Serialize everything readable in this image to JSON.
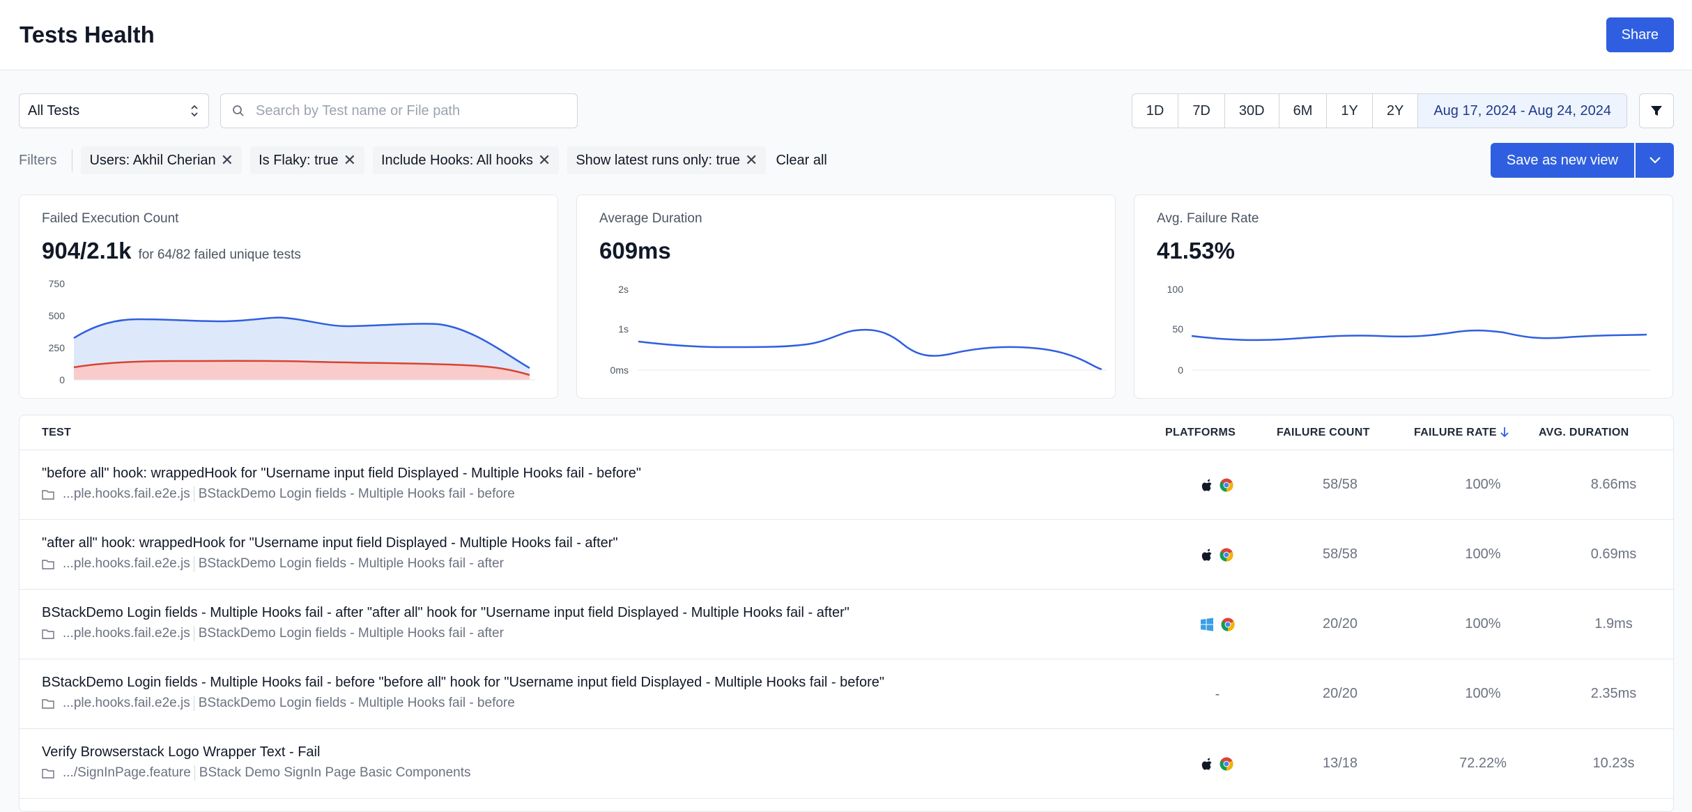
{
  "header": {
    "title": "Tests Health",
    "share_label": "Share"
  },
  "toolbar": {
    "select_value": "All Tests",
    "search_placeholder": "Search by Test name or File path",
    "ranges": [
      "1D",
      "7D",
      "30D",
      "6M",
      "1Y",
      "2Y"
    ],
    "date_range": "Aug 17, 2024 - Aug 24, 2024"
  },
  "filters": {
    "label": "Filters",
    "chips": [
      "Users: Akhil Cherian",
      "Is Flaky: true",
      "Include Hooks: All hooks",
      "Show latest runs only: true"
    ],
    "clear_all": "Clear all",
    "save_view": "Save as new view"
  },
  "cards": {
    "failed": {
      "title": "Failed Execution Count",
      "value": "904/2.1k",
      "sub": "for 64/82 failed unique tests",
      "y_ticks": [
        "750",
        "500",
        "250",
        "0"
      ]
    },
    "duration": {
      "title": "Average Duration",
      "value": "609ms",
      "y_ticks": [
        "2s",
        "1s",
        "0ms"
      ]
    },
    "failure_rate": {
      "title": "Avg. Failure Rate",
      "value": "41.53%",
      "y_ticks": [
        "100",
        "50",
        "0"
      ]
    }
  },
  "table": {
    "headers": {
      "test": "TEST",
      "platforms": "PLATFORMS",
      "failure_count": "FAILURE COUNT",
      "failure_rate": "FAILURE RATE",
      "avg_duration": "AVG. DURATION"
    },
    "rows": [
      {
        "name": "\"before all\" hook: wrappedHook for \"Username input field Displayed - Multiple Hooks fail - before\"",
        "file": "...ple.hooks.fail.e2e.js",
        "suite": "BStackDemo Login fields - Multiple Hooks fail - before",
        "platforms": [
          "apple-icon",
          "chrome-icon"
        ],
        "count": "58/58",
        "rate": "100%",
        "duration": "8.66ms"
      },
      {
        "name": "\"after all\" hook: wrappedHook for \"Username input field Displayed - Multiple Hooks fail - after\"",
        "file": "...ple.hooks.fail.e2e.js",
        "suite": "BStackDemo Login fields - Multiple Hooks fail - after",
        "platforms": [
          "apple-icon",
          "chrome-icon"
        ],
        "count": "58/58",
        "rate": "100%",
        "duration": "0.69ms"
      },
      {
        "name": "BStackDemo Login fields - Multiple Hooks fail - after \"after all\" hook for \"Username input field Displayed - Multiple Hooks fail - after\"",
        "file": "...ple.hooks.fail.e2e.js",
        "suite": "BStackDemo Login fields - Multiple Hooks fail - after",
        "platforms": [
          "windows-icon",
          "chrome-icon"
        ],
        "count": "20/20",
        "rate": "100%",
        "duration": "1.9ms"
      },
      {
        "name": "BStackDemo Login fields - Multiple Hooks fail - before \"before all\" hook for \"Username input field Displayed - Multiple Hooks fail - before\"",
        "file": "...ple.hooks.fail.e2e.js",
        "suite": "BStackDemo Login fields - Multiple Hooks fail - before",
        "platforms_text": "-",
        "count": "20/20",
        "rate": "100%",
        "duration": "2.35ms"
      },
      {
        "name": "Verify Browserstack Logo Wrapper Text - Fail",
        "file": ".../SignInPage.feature",
        "suite": "BStack Demo SignIn Page Basic Components",
        "platforms": [
          "apple-icon",
          "chrome-icon"
        ],
        "count": "13/18",
        "rate": "72.22%",
        "duration": "10.23s"
      }
    ]
  },
  "colors": {
    "accent": "#2f5fe0",
    "failed_line": "#d9432f",
    "chart_line": "#2f5fe0"
  }
}
